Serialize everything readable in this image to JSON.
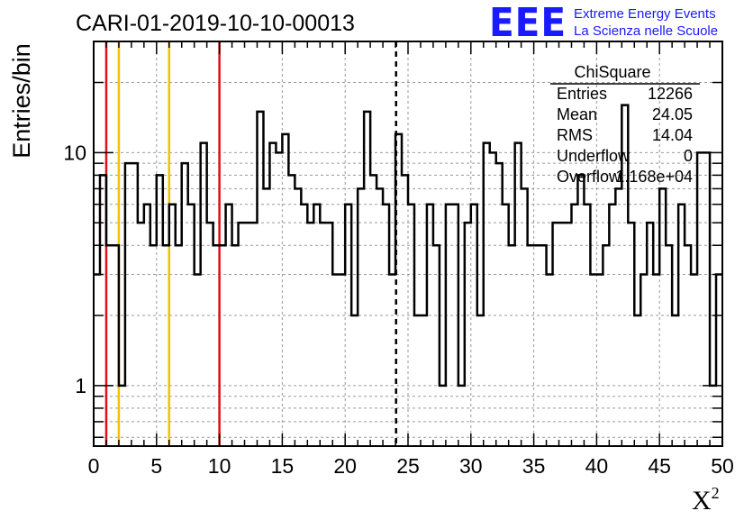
{
  "header": {
    "run_id": "CARI-01-2019-10-10-00013",
    "logo_text": "EEE",
    "logo_line1": "Extreme Energy Events",
    "logo_line2": "La Scienza nelle Scuole"
  },
  "colors": {
    "logo": "#1a1aff",
    "red_line": "#dd1111",
    "yellow_line": "#f2c200",
    "histogram": "#000000",
    "grid": "#9a9a9a"
  },
  "stats_box": {
    "title": "ChiSquare",
    "rows": [
      {
        "label": "Entries",
        "value": "12266"
      },
      {
        "label": "Mean",
        "value": "24.05"
      },
      {
        "label": "RMS",
        "value": "14.04"
      },
      {
        "label": "Underflow",
        "value": "0"
      },
      {
        "label": "Overflow",
        "value": "1.168e+04"
      }
    ]
  },
  "chart_data": {
    "type": "histogram",
    "title": "CARI-01-2019-10-10-00013",
    "xlabel": "X",
    "xlabel_superscript": "2",
    "ylabel": "Entries/bin",
    "xlim": [
      0,
      50
    ],
    "ylim": [
      0.55,
      30
    ],
    "y_scale": "log",
    "grid": true,
    "bin_width": 0.5,
    "x_ticks": [
      "0",
      "5",
      "10",
      "15",
      "20",
      "25",
      "30",
      "35",
      "40",
      "45",
      "50"
    ],
    "y_ticks": [
      "1",
      "10"
    ],
    "bin_counts": [
      3,
      8,
      4,
      4,
      1,
      9,
      9,
      5,
      6,
      4,
      8,
      4,
      6,
      4,
      9,
      6,
      3,
      11,
      5,
      4,
      4,
      6,
      4,
      5,
      5,
      5,
      15,
      7,
      11,
      10,
      12,
      8,
      7,
      6,
      5,
      6,
      5,
      5,
      3,
      3,
      6,
      2,
      7,
      15,
      8,
      7,
      6,
      3,
      12,
      8,
      6,
      2,
      2,
      6,
      4,
      1,
      6,
      6,
      1,
      5,
      6,
      2,
      11,
      10,
      9,
      6,
      4,
      11,
      7,
      4,
      4,
      4,
      3,
      5,
      5,
      5,
      6,
      8,
      6,
      3,
      3,
      4,
      6,
      7,
      16,
      5,
      2,
      3,
      5,
      3,
      7,
      4,
      2,
      6,
      4,
      3,
      10,
      10,
      1,
      3
    ],
    "vertical_lines": [
      {
        "x": 1,
        "color": "red",
        "style": "solid"
      },
      {
        "x": 2,
        "color": "yellow",
        "style": "solid"
      },
      {
        "x": 6,
        "color": "yellow",
        "style": "solid"
      },
      {
        "x": 10,
        "color": "red",
        "style": "solid"
      },
      {
        "x": 24.05,
        "color": "black",
        "style": "dashed"
      }
    ]
  }
}
